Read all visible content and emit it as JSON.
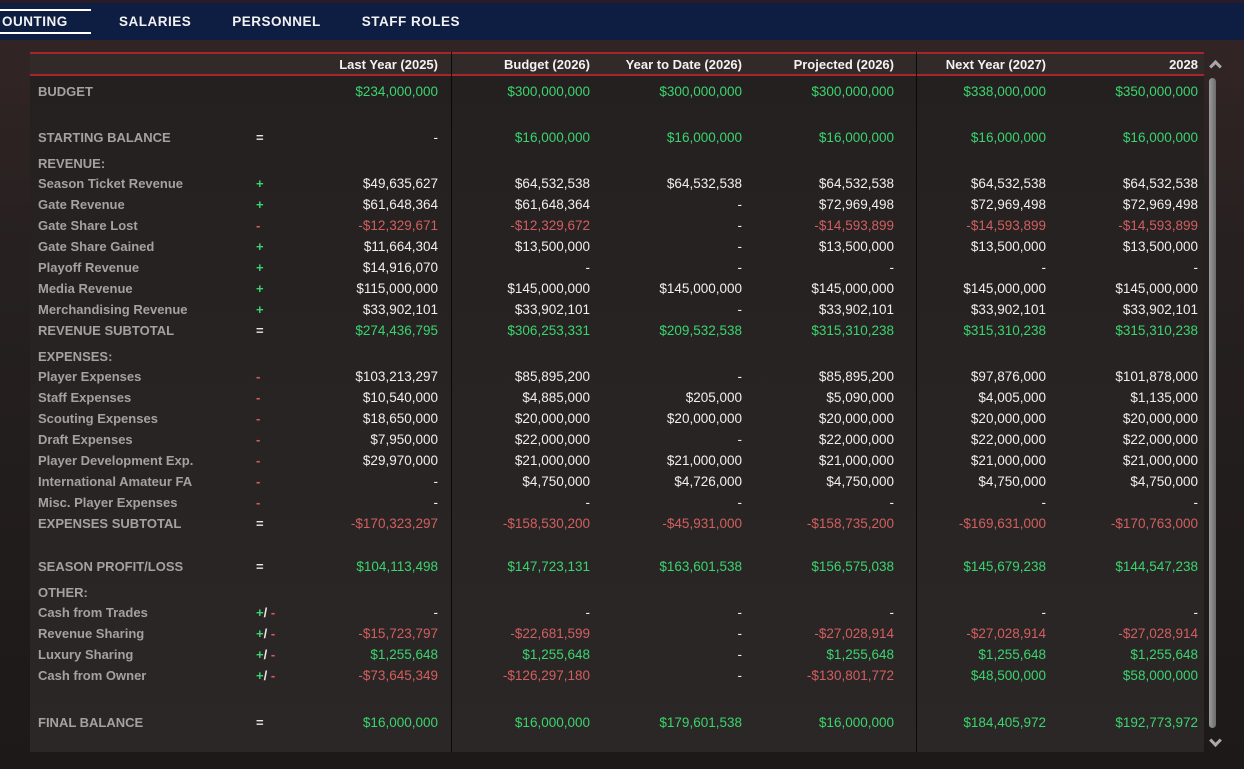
{
  "navbar": {
    "tabs": [
      {
        "label": "OUNTING",
        "active": true
      },
      {
        "label": "SALARIES",
        "active": false
      },
      {
        "label": "PERSONNEL",
        "active": false
      },
      {
        "label": "STAFF ROLES",
        "active": false
      }
    ]
  },
  "colors": {
    "navbar_bg": "#0e1d42",
    "header_rule_red": "#a8262a",
    "positive_green": "#3bd46e",
    "negative_red": "#d25f5f",
    "label_gray": "#a5a1a1",
    "value_white": "#f0efef"
  },
  "icons": {
    "scroll_up": "chevron-up-icon",
    "scroll_down": "chevron-down-icon"
  },
  "table": {
    "columns": [
      "Last Year (2025)",
      "Budget (2026)",
      "Year to Date (2026)",
      "Projected (2026)",
      "Next Year (2027)",
      "2028"
    ],
    "rows": [
      {
        "label": "BUDGET",
        "op": "",
        "values": [
          "$234,000,000",
          "$300,000,000",
          "$300,000,000",
          "$300,000,000",
          "$338,000,000",
          "$350,000,000"
        ],
        "vc": "gggggg"
      },
      {
        "type": "spacer",
        "size": "a"
      },
      {
        "label": "STARTING BALANCE",
        "op": "=",
        "values": [
          "-",
          "$16,000,000",
          "$16,000,000",
          "$16,000,000",
          "$16,000,000",
          "$16,000,000"
        ],
        "vc": "wggggg"
      },
      {
        "type": "section",
        "label": "REVENUE:"
      },
      {
        "label": "Season Ticket Revenue",
        "op": "+",
        "values": [
          "$49,635,627",
          "$64,532,538",
          "$64,532,538",
          "$64,532,538",
          "$64,532,538",
          "$64,532,538"
        ],
        "vc": "wwwwww"
      },
      {
        "label": "Gate Revenue",
        "op": "+",
        "values": [
          "$61,648,364",
          "$61,648,364",
          "-",
          "$72,969,498",
          "$72,969,498",
          "$72,969,498"
        ],
        "vc": "wwwwww"
      },
      {
        "label": "Gate Share Lost",
        "op": "-",
        "values": [
          "-$12,329,671",
          "-$12,329,672",
          "-",
          "-$14,593,899",
          "-$14,593,899",
          "-$14,593,899"
        ],
        "vc": "rrwrrr"
      },
      {
        "label": "Gate Share Gained",
        "op": "+",
        "values": [
          "$11,664,304",
          "$13,500,000",
          "-",
          "$13,500,000",
          "$13,500,000",
          "$13,500,000"
        ],
        "vc": "wwwwww"
      },
      {
        "label": "Playoff Revenue",
        "op": "+",
        "values": [
          "$14,916,070",
          "-",
          "-",
          "-",
          "-",
          "-"
        ],
        "vc": "wwwwww"
      },
      {
        "label": "Media Revenue",
        "op": "+",
        "values": [
          "$115,000,000",
          "$145,000,000",
          "$145,000,000",
          "$145,000,000",
          "$145,000,000",
          "$145,000,000"
        ],
        "vc": "wwwwww"
      },
      {
        "label": "Merchandising Revenue",
        "op": "+",
        "values": [
          "$33,902,101",
          "$33,902,101",
          "-",
          "$33,902,101",
          "$33,902,101",
          "$33,902,101"
        ],
        "vc": "wwwwww"
      },
      {
        "label": "REVENUE SUBTOTAL",
        "op": "=",
        "values": [
          "$274,436,795",
          "$306,253,331",
          "$209,532,538",
          "$315,310,238",
          "$315,310,238",
          "$315,310,238"
        ],
        "vc": "gggggg"
      },
      {
        "type": "section",
        "label": "EXPENSES:"
      },
      {
        "label": "Player Expenses",
        "op": "-",
        "values": [
          "$103,213,297",
          "$85,895,200",
          "-",
          "$85,895,200",
          "$97,876,000",
          "$101,878,000"
        ],
        "vc": "wwwwww"
      },
      {
        "label": "Staff Expenses",
        "op": "-",
        "values": [
          "$10,540,000",
          "$4,885,000",
          "$205,000",
          "$5,090,000",
          "$4,005,000",
          "$1,135,000"
        ],
        "vc": "wwwwww"
      },
      {
        "label": "Scouting Expenses",
        "op": "-",
        "values": [
          "$18,650,000",
          "$20,000,000",
          "$20,000,000",
          "$20,000,000",
          "$20,000,000",
          "$20,000,000"
        ],
        "vc": "wwwwww"
      },
      {
        "label": "Draft Expenses",
        "op": "-",
        "values": [
          "$7,950,000",
          "$22,000,000",
          "-",
          "$22,000,000",
          "$22,000,000",
          "$22,000,000"
        ],
        "vc": "wwwwww"
      },
      {
        "label": "Player Development Exp.",
        "op": "-",
        "values": [
          "$29,970,000",
          "$21,000,000",
          "$21,000,000",
          "$21,000,000",
          "$21,000,000",
          "$21,000,000"
        ],
        "vc": "wwwwww"
      },
      {
        "label": "International Amateur FA",
        "op": "-",
        "values": [
          "-",
          "$4,750,000",
          "$4,726,000",
          "$4,750,000",
          "$4,750,000",
          "$4,750,000"
        ],
        "vc": "wwwwww"
      },
      {
        "label": "Misc. Player Expenses",
        "op": "-",
        "values": [
          "-",
          "-",
          "-",
          "-",
          "-",
          "-"
        ],
        "vc": "wwwwww"
      },
      {
        "label": "EXPENSES SUBTOTAL",
        "op": "=",
        "values": [
          "-$170,323,297",
          "-$158,530,200",
          "-$45,931,000",
          "-$158,735,200",
          "-$169,631,000",
          "-$170,763,000"
        ],
        "vc": "rrrrrr"
      },
      {
        "type": "spacer",
        "size": "b"
      },
      {
        "label": "SEASON PROFIT/LOSS",
        "op": "=",
        "values": [
          "$104,113,498",
          "$147,723,131",
          "$163,601,538",
          "$156,575,038",
          "$145,679,238",
          "$144,547,238"
        ],
        "vc": "gggggg"
      },
      {
        "type": "section",
        "label": "OTHER:"
      },
      {
        "label": "Cash from Trades",
        "op": "+/-",
        "values": [
          "-",
          "-",
          "-",
          "-",
          "-",
          "-"
        ],
        "vc": "wwwwww"
      },
      {
        "label": "Revenue Sharing",
        "op": "+/-",
        "values": [
          "-$15,723,797",
          "-$22,681,599",
          "-",
          "-$27,028,914",
          "-$27,028,914",
          "-$27,028,914"
        ],
        "vc": "rrwrrr"
      },
      {
        "label": "Luxury Sharing",
        "op": "+/-",
        "values": [
          "$1,255,648",
          "$1,255,648",
          "-",
          "$1,255,648",
          "$1,255,648",
          "$1,255,648"
        ],
        "vc": "ggwggg"
      },
      {
        "label": "Cash from Owner",
        "op": "+/-",
        "values": [
          "-$73,645,349",
          "-$126,297,180",
          "-",
          "-$130,801,772",
          "$48,500,000",
          "$58,000,000"
        ],
        "vc": "rrwrgg"
      },
      {
        "type": "spacer",
        "size": "c"
      },
      {
        "label": "FINAL BALANCE",
        "op": "=",
        "values": [
          "$16,000,000",
          "$16,000,000",
          "$179,601,538",
          "$16,000,000",
          "$184,405,972",
          "$192,773,972"
        ],
        "vc": "gggggg"
      }
    ]
  }
}
